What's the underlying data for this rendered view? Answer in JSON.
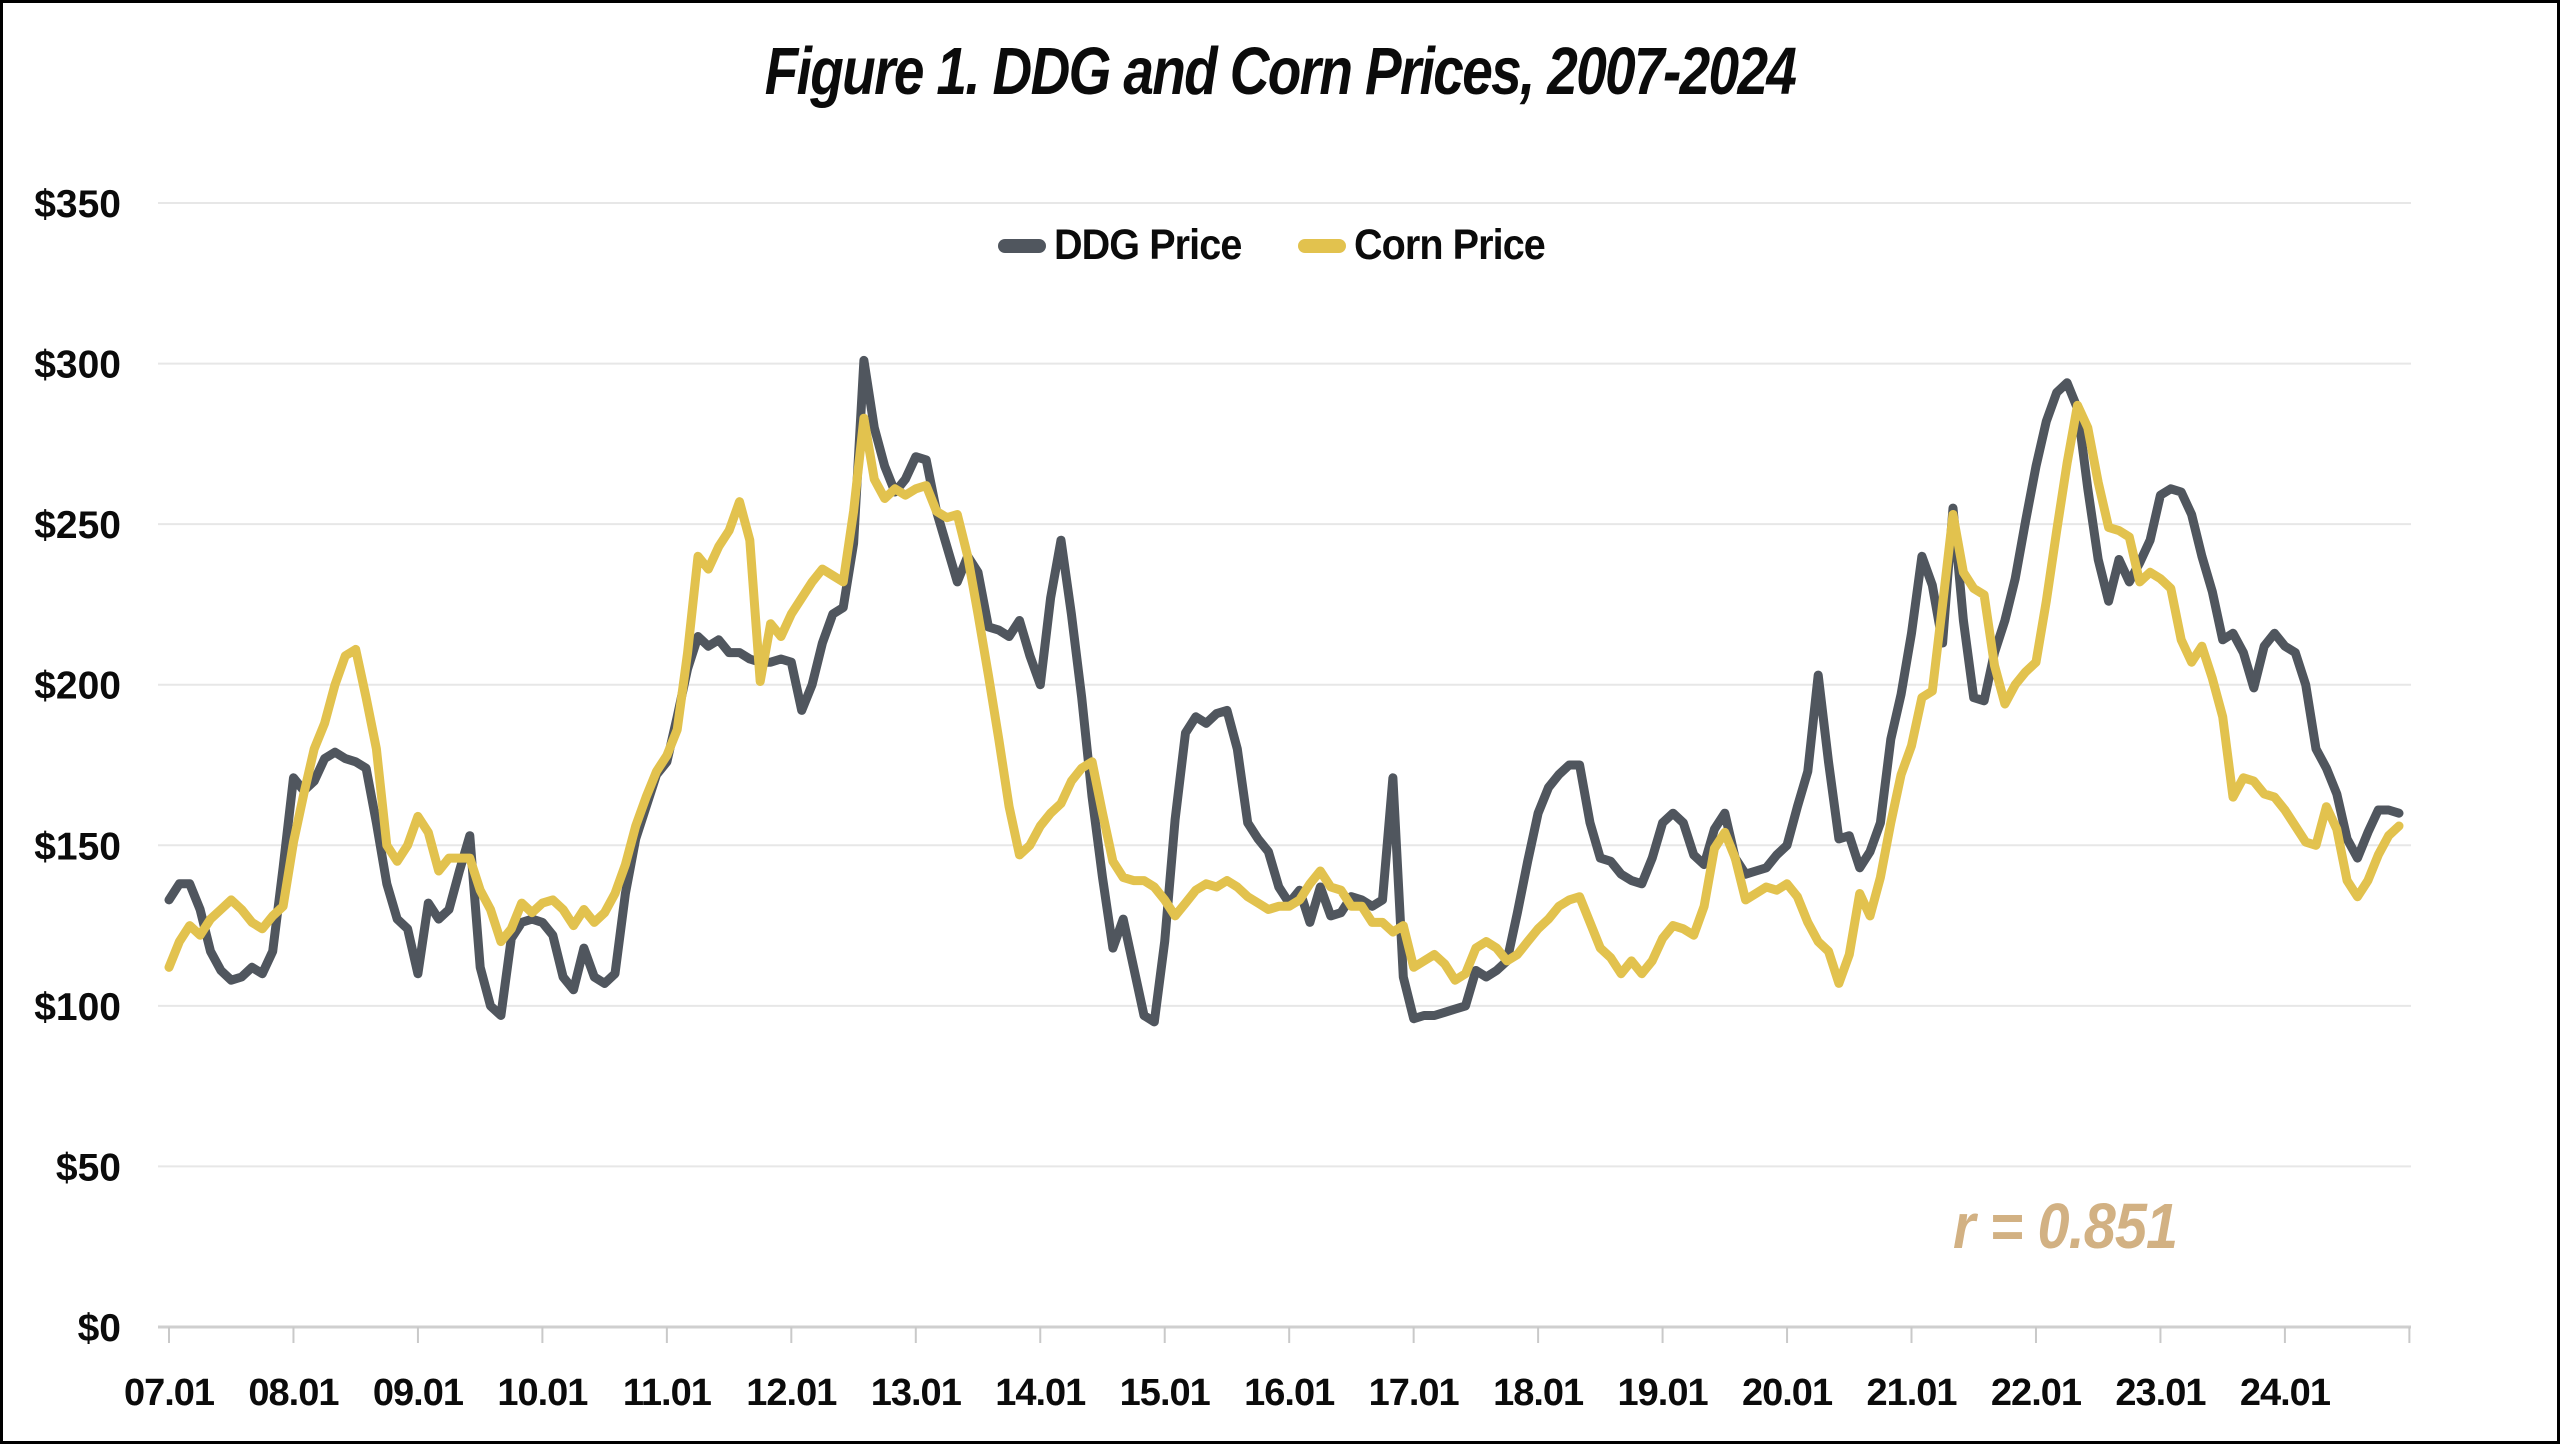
{
  "chart_data": {
    "type": "line",
    "title": "Figure 1. DDG and Corn Prices, 2007-2024",
    "annotation": "r = 0.851",
    "annotation_color": "#d2b183",
    "xlabel": "",
    "ylabel": "",
    "ylim": [
      0,
      350
    ],
    "grid": true,
    "legend_position": "top-center",
    "frequency": "monthly",
    "start_period": "07.01",
    "end_period": "24.12",
    "x_tick_labels": [
      "07.01",
      "08.01",
      "09.01",
      "10.01",
      "11.01",
      "12.01",
      "13.01",
      "14.01",
      "15.01",
      "16.01",
      "17.01",
      "18.01",
      "19.01",
      "20.01",
      "21.01",
      "22.01",
      "23.01",
      "24.01"
    ],
    "y_ticks": [
      {
        "value": 0,
        "label": "$0"
      },
      {
        "value": 50,
        "label": "$50"
      },
      {
        "value": 100,
        "label": "$100"
      },
      {
        "value": 150,
        "label": "$150"
      },
      {
        "value": 200,
        "label": "$200"
      },
      {
        "value": 250,
        "label": "$250"
      },
      {
        "value": 300,
        "label": "$300"
      },
      {
        "value": 350,
        "label": "$350"
      }
    ],
    "series": [
      {
        "name": "DDG Price",
        "color": "#50565e",
        "values": [
          133,
          138,
          138,
          130,
          117,
          111,
          108,
          109,
          112,
          110,
          117,
          143,
          171,
          167,
          170,
          177,
          179,
          177,
          176,
          174,
          157,
          138,
          127,
          124,
          110,
          132,
          127,
          130,
          142,
          153,
          112,
          100,
          97,
          121,
          126,
          127,
          126,
          122,
          109,
          105,
          118,
          109,
          107,
          110,
          135,
          152,
          162,
          172,
          176,
          190,
          205,
          215,
          212,
          214,
          210,
          210,
          208,
          207,
          207,
          208,
          207,
          192,
          200,
          213,
          222,
          224,
          244,
          301,
          280,
          268,
          260,
          264,
          271,
          270,
          254,
          243,
          232,
          240,
          235,
          218,
          217,
          215,
          220,
          209,
          200,
          227,
          245,
          222,
          196,
          165,
          140,
          118,
          127,
          112,
          97,
          95,
          120,
          158,
          185,
          190,
          188,
          191,
          192,
          180,
          157,
          152,
          148,
          137,
          132,
          136,
          126,
          137,
          128,
          129,
          134,
          133,
          131,
          133,
          171,
          109,
          96,
          97,
          97,
          98,
          99,
          100,
          111,
          109,
          111,
          114,
          129,
          145,
          160,
          168,
          172,
          175,
          175,
          157,
          146,
          145,
          141,
          139,
          138,
          146,
          157,
          160,
          157,
          147,
          144,
          155,
          160,
          146,
          141,
          142,
          143,
          147,
          150,
          162,
          173,
          203,
          176,
          152,
          153,
          143,
          148,
          157,
          183,
          197,
          216,
          240,
          231,
          213,
          255,
          220,
          196,
          195,
          210,
          220,
          233,
          251,
          268,
          282,
          291,
          294,
          286,
          261,
          239,
          226,
          239,
          232,
          238,
          245,
          259,
          261,
          260,
          253,
          240,
          229,
          214,
          216,
          210,
          199,
          212,
          216,
          212,
          210,
          200,
          180,
          174,
          166,
          152,
          146,
          154,
          161,
          161,
          160
        ]
      },
      {
        "name": "Corn Price",
        "color": "#e2c24e",
        "values": [
          112,
          120,
          125,
          122,
          127,
          130,
          133,
          130,
          126,
          124,
          128,
          131,
          151,
          166,
          180,
          188,
          200,
          209,
          211,
          196,
          180,
          150,
          145,
          150,
          159,
          154,
          142,
          146,
          146,
          146,
          136,
          130,
          120,
          124,
          132,
          129,
          132,
          133,
          130,
          125,
          130,
          126,
          129,
          135,
          144,
          156,
          165,
          173,
          178,
          186,
          210,
          240,
          236,
          243,
          248,
          257,
          245,
          201,
          219,
          215,
          222,
          227,
          232,
          236,
          234,
          232,
          254,
          283,
          264,
          258,
          261,
          259,
          261,
          262,
          254,
          252,
          253,
          240,
          222,
          203,
          183,
          162,
          147,
          150,
          156,
          160,
          163,
          170,
          174,
          176,
          160,
          145,
          140,
          139,
          139,
          137,
          133,
          128,
          132,
          136,
          138,
          137,
          139,
          137,
          134,
          132,
          130,
          131,
          131,
          133,
          138,
          142,
          137,
          136,
          131,
          131,
          126,
          126,
          123,
          125,
          112,
          114,
          116,
          113,
          108,
          110,
          118,
          120,
          118,
          114,
          116,
          120,
          124,
          127,
          131,
          133,
          134,
          126,
          118,
          115,
          110,
          114,
          110,
          114,
          121,
          125,
          124,
          122,
          131,
          149,
          154,
          146,
          133,
          135,
          137,
          136,
          138,
          134,
          126,
          120,
          117,
          107,
          116,
          135,
          128,
          140,
          157,
          172,
          181,
          196,
          198,
          225,
          253,
          235,
          230,
          228,
          206,
          194,
          200,
          204,
          207,
          226,
          248,
          269,
          287,
          280,
          263,
          249,
          248,
          246,
          232,
          235,
          233,
          230,
          214,
          207,
          212,
          202,
          190,
          165,
          171,
          170,
          166,
          165,
          161,
          156,
          151,
          150,
          162,
          155,
          139,
          134,
          139,
          147,
          153,
          156
        ]
      }
    ],
    "style": {
      "gridline_color": "#e7e7e7",
      "axis_line_color": "#cfcfcf",
      "tick_color": "#c9c9c9",
      "background": "#ffffff",
      "line_width": 9
    }
  }
}
